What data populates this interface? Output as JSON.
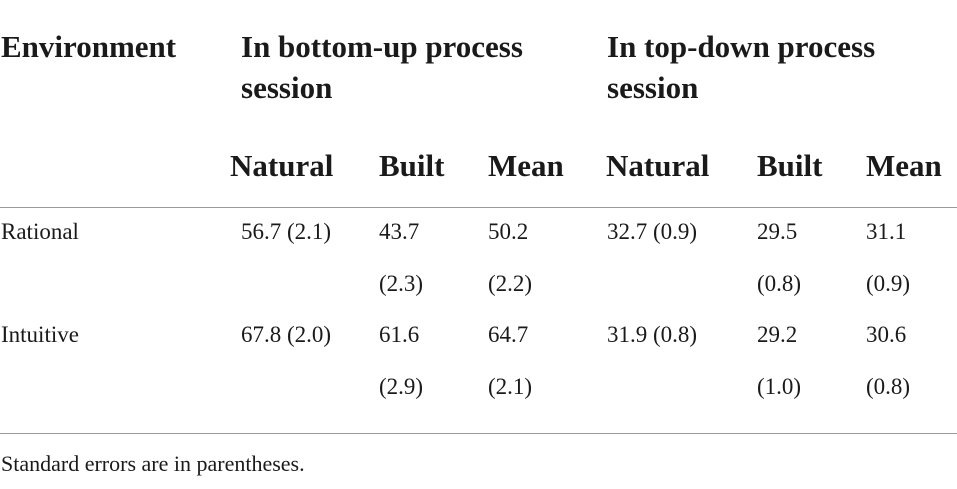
{
  "table": {
    "header": {
      "environment": "Environment",
      "bottom_up_line1": "In bottom-up process",
      "bottom_up_line2": "session",
      "top_down_line1": "In top-down process",
      "top_down_line2": "session",
      "sub": [
        "Natural",
        "Built",
        "Mean",
        "Natural",
        "Built",
        "Mean"
      ]
    },
    "rows": [
      {
        "label": "Rational",
        "bu_natural": "56.7 (2.1)",
        "bu_built_1": "43.7",
        "bu_built_2": "(2.3)",
        "bu_mean_1": "50.2",
        "bu_mean_2": "(2.2)",
        "td_natural": "32.7 (0.9)",
        "td_built_1": "29.5",
        "td_built_2": "(0.8)",
        "td_mean_1": "31.1",
        "td_mean_2": "(0.9)"
      },
      {
        "label": "Intuitive",
        "bu_natural": "67.8 (2.0)",
        "bu_built_1": "61.6",
        "bu_built_2": "(2.9)",
        "bu_mean_1": "64.7",
        "bu_mean_2": "(2.1)",
        "td_natural": "31.9 (0.8)",
        "td_built_1": "29.2",
        "td_built_2": "(1.0)",
        "td_mean_1": "30.6",
        "td_mean_2": "(0.8)"
      }
    ],
    "footnote": "Standard errors are in parentheses."
  }
}
